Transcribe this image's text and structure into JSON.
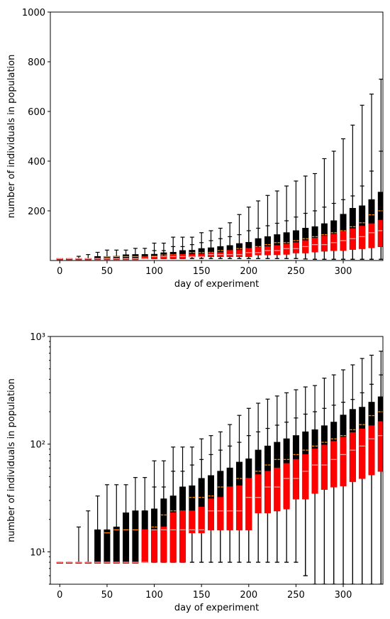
{
  "chart_data": [
    {
      "type": "boxplot",
      "yscale": "linear",
      "xlabel": "day of experiment",
      "ylabel": "number of individuals in population",
      "xlim": [
        -10,
        342
      ],
      "ylim": [
        0,
        1000
      ],
      "xticks": [
        0,
        50,
        100,
        150,
        200,
        250,
        300
      ],
      "yticks": [
        200,
        400,
        600,
        800,
        1000
      ],
      "series": [
        {
          "color": "#000000",
          "median_color": "#ff8c00",
          "boxes": [
            {
              "day": 0,
              "whislo": 8,
              "q1": 8,
              "med": 8,
              "q3": 8,
              "whishi": 8
            },
            {
              "day": 10,
              "whislo": 8,
              "q1": 8,
              "med": 8,
              "q3": 8,
              "whishi": 8
            },
            {
              "day": 20,
              "whislo": 8,
              "q1": 8,
              "med": 8,
              "q3": 8,
              "whishi": 17
            },
            {
              "day": 30,
              "whislo": 8,
              "q1": 8,
              "med": 8,
              "q3": 8,
              "whishi": 24
            },
            {
              "day": 40,
              "whislo": 8,
              "q1": 8,
              "med": 8,
              "q3": 16,
              "whishi": 33
            },
            {
              "day": 50,
              "whislo": 8,
              "q1": 8,
              "med": 15,
              "q3": 16,
              "whishi": 42
            },
            {
              "day": 60,
              "whislo": 8,
              "q1": 8,
              "med": 16,
              "q3": 17,
              "whishi": 42
            },
            {
              "day": 70,
              "whislo": 8,
              "q1": 8,
              "med": 16,
              "q3": 23,
              "whishi": 42
            },
            {
              "day": 80,
              "whislo": 8,
              "q1": 8,
              "med": 16,
              "q3": 24,
              "whishi": 49
            },
            {
              "day": 90,
              "whislo": 8,
              "q1": 8,
              "med": 16,
              "q3": 24,
              "whishi": 49
            },
            {
              "day": 100,
              "whislo": 8,
              "q1": 8,
              "med": 17,
              "q3": 25,
              "whishi": 70
            },
            {
              "day": 110,
              "whislo": 8,
              "q1": 8,
              "med": 22,
              "q3": 31,
              "whishi": 70
            },
            {
              "day": 120,
              "whislo": 8,
              "q1": 8,
              "med": 24,
              "q3": 33,
              "whishi": 94
            },
            {
              "day": 130,
              "whislo": 8,
              "q1": 8,
              "med": 24,
              "q3": 40,
              "whishi": 94
            },
            {
              "day": 140,
              "whislo": 8,
              "q1": 16,
              "med": 32,
              "q3": 41,
              "whishi": 94
            },
            {
              "day": 150,
              "whislo": 8,
              "q1": 16,
              "med": 32,
              "q3": 48,
              "whishi": 112
            },
            {
              "day": 160,
              "whislo": 8,
              "q1": 16,
              "med": 33,
              "q3": 51,
              "whishi": 120
            },
            {
              "day": 170,
              "whislo": 8,
              "q1": 16,
              "med": 40,
              "q3": 56,
              "whishi": 130
            },
            {
              "day": 180,
              "whislo": 8,
              "q1": 16,
              "med": 40,
              "q3": 60,
              "whishi": 152
            },
            {
              "day": 190,
              "whislo": 8,
              "q1": 16,
              "med": 48,
              "q3": 68,
              "whishi": 185
            },
            {
              "day": 200,
              "whislo": 8,
              "q1": 16,
              "med": 48,
              "q3": 73,
              "whishi": 215
            },
            {
              "day": 210,
              "whislo": 8,
              "q1": 23,
              "med": 56,
              "q3": 88,
              "whishi": 240
            },
            {
              "day": 220,
              "whislo": 8,
              "q1": 23,
              "med": 64,
              "q3": 96,
              "whishi": 262
            },
            {
              "day": 230,
              "whislo": 8,
              "q1": 24,
              "med": 72,
              "q3": 104,
              "whishi": 280
            },
            {
              "day": 240,
              "whislo": 8,
              "q1": 26,
              "med": 72,
              "q3": 112,
              "whishi": 300
            },
            {
              "day": 250,
              "whislo": 8,
              "q1": 31,
              "med": 80,
              "q3": 120,
              "whishi": 320
            },
            {
              "day": 260,
              "whislo": 6,
              "q1": 31,
              "med": 88,
              "q3": 130,
              "whishi": 340
            },
            {
              "day": 270,
              "whislo": 5,
              "q1": 35,
              "med": 96,
              "q3": 136,
              "whishi": 350
            },
            {
              "day": 280,
              "whislo": 5,
              "q1": 38,
              "med": 104,
              "q3": 148,
              "whishi": 410
            },
            {
              "day": 290,
              "whislo": 5,
              "q1": 40,
              "med": 112,
              "q3": 160,
              "whishi": 440
            },
            {
              "day": 300,
              "whislo": 5,
              "q1": 41,
              "med": 120,
              "q3": 186,
              "whishi": 490
            },
            {
              "day": 310,
              "whislo": 5,
              "q1": 45,
              "med": 136,
              "q3": 210,
              "whishi": 545
            },
            {
              "day": 320,
              "whislo": 5,
              "q1": 48,
              "med": 152,
              "q3": 220,
              "whishi": 625
            },
            {
              "day": 330,
              "whislo": 5,
              "q1": 52,
              "med": 184,
              "q3": 245,
              "whishi": 670
            },
            {
              "day": 340,
              "whislo": 5,
              "q1": 56,
              "med": 200,
              "q3": 275,
              "whishi": 730
            }
          ]
        },
        {
          "color": "#ff0000",
          "median_color": "#ffa0a0",
          "boxes": [
            {
              "day": 0,
              "whislo": 8,
              "q1": 8,
              "med": 8,
              "q3": 8,
              "whishi": 8
            },
            {
              "day": 10,
              "whislo": 8,
              "q1": 8,
              "med": 8,
              "q3": 8,
              "whishi": 8
            },
            {
              "day": 20,
              "whislo": 8,
              "q1": 8,
              "med": 8,
              "q3": 8,
              "whishi": 8
            },
            {
              "day": 30,
              "whislo": 8,
              "q1": 8,
              "med": 8,
              "q3": 8,
              "whishi": 8
            },
            {
              "day": 40,
              "whislo": 8,
              "q1": 8,
              "med": 8,
              "q3": 8,
              "whishi": 8
            },
            {
              "day": 50,
              "whislo": 8,
              "q1": 8,
              "med": 8,
              "q3": 8,
              "whishi": 8
            },
            {
              "day": 60,
              "whislo": 8,
              "q1": 8,
              "med": 8,
              "q3": 8,
              "whishi": 8
            },
            {
              "day": 70,
              "whislo": 8,
              "q1": 8,
              "med": 8,
              "q3": 8,
              "whishi": 8
            },
            {
              "day": 80,
              "whislo": 8,
              "q1": 8,
              "med": 8,
              "q3": 8,
              "whishi": 8
            },
            {
              "day": 90,
              "whislo": 8,
              "q1": 8,
              "med": 8,
              "q3": 16,
              "whishi": 24
            },
            {
              "day": 100,
              "whislo": 8,
              "q1": 8,
              "med": 16,
              "q3": 16,
              "whishi": 40
            },
            {
              "day": 110,
              "whislo": 8,
              "q1": 8,
              "med": 16,
              "q3": 17,
              "whishi": 40
            },
            {
              "day": 120,
              "whislo": 8,
              "q1": 8,
              "med": 16,
              "q3": 23,
              "whishi": 56
            },
            {
              "day": 130,
              "whislo": 8,
              "q1": 8,
              "med": 16,
              "q3": 24,
              "whishi": 56
            },
            {
              "day": 140,
              "whislo": 8,
              "q1": 15,
              "med": 16,
              "q3": 24,
              "whishi": 64
            },
            {
              "day": 150,
              "whislo": 8,
              "q1": 15,
              "med": 16,
              "q3": 26,
              "whishi": 72
            },
            {
              "day": 160,
              "whislo": 8,
              "q1": 16,
              "med": 24,
              "q3": 31,
              "whishi": 80
            },
            {
              "day": 170,
              "whislo": 8,
              "q1": 16,
              "med": 24,
              "q3": 32,
              "whishi": 88
            },
            {
              "day": 180,
              "whislo": 8,
              "q1": 16,
              "med": 24,
              "q3": 40,
              "whishi": 96
            },
            {
              "day": 190,
              "whislo": 8,
              "q1": 16,
              "med": 24,
              "q3": 41,
              "whishi": 104
            },
            {
              "day": 200,
              "whislo": 8,
              "q1": 16,
              "med": 32,
              "q3": 48,
              "whishi": 120
            },
            {
              "day": 210,
              "whislo": 8,
              "q1": 23,
              "med": 32,
              "q3": 52,
              "whishi": 130
            },
            {
              "day": 220,
              "whislo": 8,
              "q1": 23,
              "med": 40,
              "q3": 56,
              "whishi": 140
            },
            {
              "day": 230,
              "whislo": 8,
              "q1": 24,
              "med": 40,
              "q3": 60,
              "whishi": 150
            },
            {
              "day": 240,
              "whislo": 8,
              "q1": 25,
              "med": 48,
              "q3": 66,
              "whishi": 160
            },
            {
              "day": 250,
              "whislo": 8,
              "q1": 31,
              "med": 48,
              "q3": 72,
              "whishi": 175
            },
            {
              "day": 260,
              "whislo": 6,
              "q1": 31,
              "med": 56,
              "q3": 80,
              "whishi": 190
            },
            {
              "day": 270,
              "whislo": 5,
              "q1": 35,
              "med": 64,
              "q3": 90,
              "whishi": 200
            },
            {
              "day": 280,
              "whislo": 5,
              "q1": 38,
              "med": 64,
              "q3": 98,
              "whishi": 215
            },
            {
              "day": 290,
              "whislo": 5,
              "q1": 40,
              "med": 72,
              "q3": 106,
              "whishi": 230
            },
            {
              "day": 300,
              "whislo": 5,
              "q1": 41,
              "med": 80,
              "q3": 116,
              "whishi": 245
            },
            {
              "day": 310,
              "whislo": 5,
              "q1": 45,
              "med": 88,
              "q3": 128,
              "whishi": 260
            },
            {
              "day": 320,
              "whislo": 5,
              "q1": 48,
              "med": 96,
              "q3": 138,
              "whishi": 300
            },
            {
              "day": 330,
              "whislo": 5,
              "q1": 52,
              "med": 112,
              "q3": 148,
              "whishi": 360
            },
            {
              "day": 340,
              "whislo": 5,
              "q1": 56,
              "med": 120,
              "q3": 162,
              "whishi": 440
            }
          ]
        }
      ]
    },
    {
      "type": "boxplot",
      "yscale": "log",
      "xlabel": "day of experiment",
      "ylabel": "number of individuals in population",
      "xlim": [
        -10,
        342
      ],
      "ylim": [
        5,
        1000
      ],
      "xticks": [
        0,
        50,
        100,
        150,
        200,
        250,
        300
      ],
      "yticks": [
        10,
        100,
        1000
      ],
      "ytick_labels": [
        "10¹",
        "10²",
        "10³"
      ],
      "series_ref": 0
    }
  ]
}
